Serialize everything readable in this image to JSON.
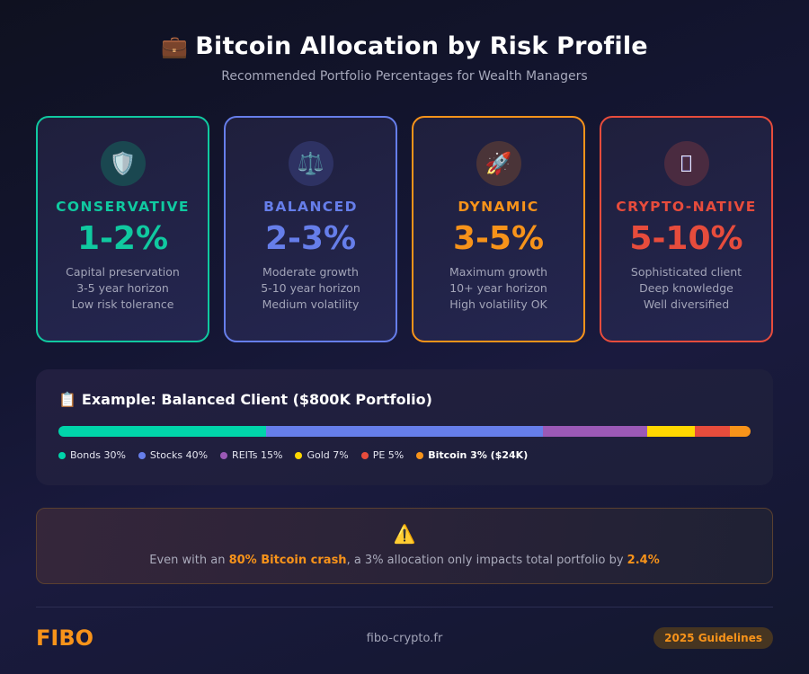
{
  "header": {
    "title_icon": "💼",
    "title": "Bitcoin Allocation by Risk Profile",
    "subtitle": "Recommended Portfolio Percentages for Wealth Managers"
  },
  "profiles": [
    {
      "icon": "🛡️",
      "icon_name": "shield-icon",
      "label": "CONSERVATIVE",
      "range": "1-2%",
      "lines": [
        "Capital preservation",
        "3-5 year horizon",
        "Low risk tolerance"
      ],
      "color": "#10c9a0",
      "icon_bg": "#1a4750"
    },
    {
      "icon": "⚖️",
      "icon_name": "scales-icon",
      "label": "BALANCED",
      "range": "2-3%",
      "lines": [
        "Moderate growth",
        "5-10 year horizon",
        "Medium volatility"
      ],
      "color": "#667eea",
      "icon_bg": "#2e3263"
    },
    {
      "icon": "🚀",
      "icon_name": "rocket-icon",
      "label": "DYNAMIC",
      "range": "3-5%",
      "lines": [
        "Maximum growth",
        "10+ year horizon",
        "High volatility OK"
      ],
      "color": "#f7931a",
      "icon_bg": "#4a3438"
    },
    {
      "icon": "",
      "icon_name": "missing-glyph-icon",
      "label": "CRYPTO-NATIVE",
      "range": "5-10%",
      "lines": [
        "Sophisticated client",
        "Deep knowledge",
        "Well diversified"
      ],
      "color": "#e74c3c",
      "icon_bg": "#4a2b40"
    }
  ],
  "example": {
    "title_icon": "📋",
    "title": "Example: Balanced Client ($800K Portfolio)",
    "allocation": [
      {
        "name": "Bonds",
        "pct": 30,
        "label": "Bonds 30%",
        "color": "#00d4aa"
      },
      {
        "name": "Stocks",
        "pct": 40,
        "label": "Stocks 40%",
        "color": "#667eea"
      },
      {
        "name": "REITs",
        "pct": 15,
        "label": "REITs 15%",
        "color": "#9b59b6"
      },
      {
        "name": "Gold",
        "pct": 7,
        "label": "Gold 7%",
        "color": "#ffd700"
      },
      {
        "name": "PE",
        "pct": 5,
        "label": "PE 5%",
        "color": "#e74c3c"
      },
      {
        "name": "Bitcoin",
        "pct": 3,
        "label": "Bitcoin 3% ($24K)",
        "color": "#f7931a",
        "bold": true
      }
    ]
  },
  "warning": {
    "icon": "⚠️",
    "text_prefix": "Even with an ",
    "highlight_1": "80% Bitcoin crash",
    "text_middle": ", a 3% allocation only impacts total portfolio by ",
    "highlight_2": "2.4%"
  },
  "footer": {
    "brand": "FIBO",
    "site": "fibo-crypto.fr",
    "badge": "2025 Guidelines"
  }
}
